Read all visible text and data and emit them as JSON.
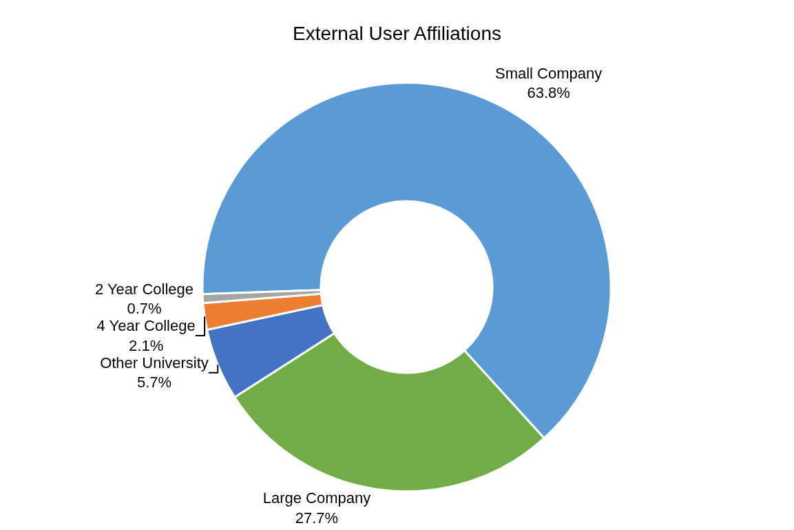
{
  "chart_data": {
    "type": "donut",
    "title": "External User Affiliations",
    "categories": [
      "Small Company",
      "Large Company",
      "Other University",
      "4 Year College",
      "2 Year College"
    ],
    "values": [
      63.8,
      27.7,
      5.7,
      2.1,
      0.7
    ],
    "value_labels": [
      "63.8%",
      "27.7%",
      "5.7%",
      "2.1%",
      "0.7%"
    ],
    "colors": [
      "#5b9bd5",
      "#70ad47",
      "#4472c4",
      "#ed7d31",
      "#a5a5a5"
    ],
    "legend": false
  }
}
